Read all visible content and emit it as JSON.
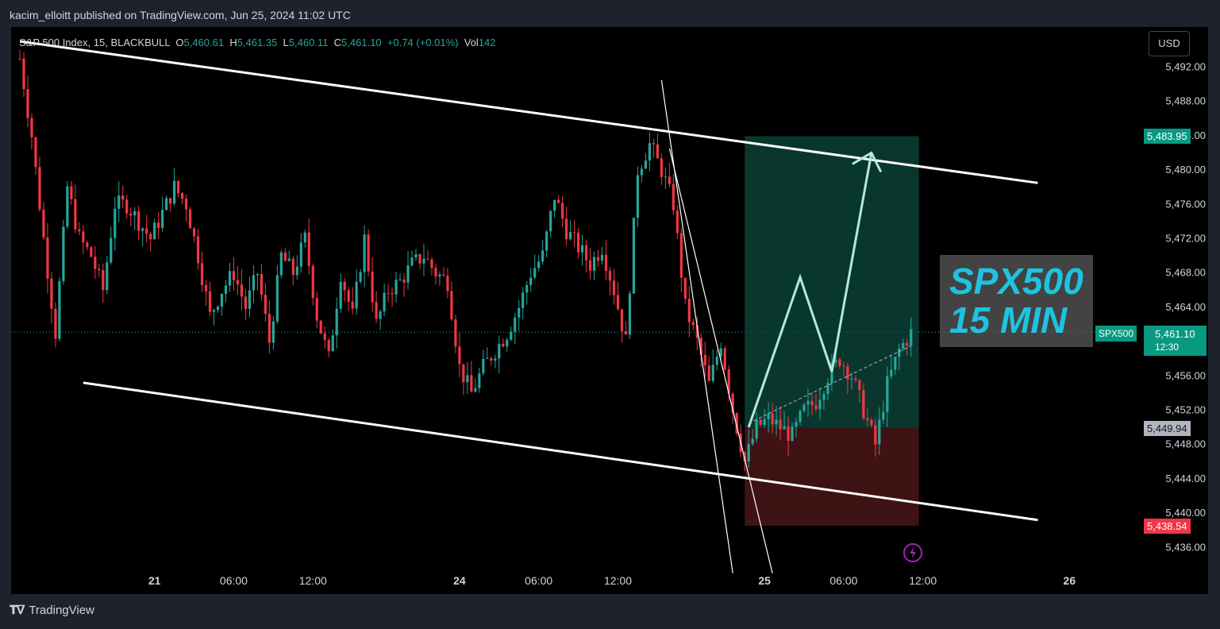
{
  "header": {
    "publisher_text": "kacim_elloitt published on TradingView.com, Jun 25, 2024 11:02 UTC"
  },
  "legend": {
    "symbol": "S&P 500 Index",
    "interval": "15",
    "broker": "BLACKBULL",
    "o_label": "O",
    "o_value": "5,460.61",
    "h_label": "H",
    "h_value": "5,461.35",
    "l_label": "L",
    "l_value": "5,460.11",
    "c_label": "C",
    "c_value": "5,461.10",
    "change": "+0.74 (+0.01%)",
    "vol_label": "Vol",
    "vol_value": "142"
  },
  "currency_button": "USD",
  "annotation": {
    "line1": "SPX500",
    "line2": "15 MIN"
  },
  "symbol_tag": "SPX500",
  "current_price": {
    "value": "5,461.10",
    "countdown": "12:30"
  },
  "target_tag": "5,483.95",
  "entry_tag": "5,449.94",
  "stop_tag": "5,438.54",
  "footer": {
    "logo_text": "TradingView"
  },
  "colors": {
    "up": "#26a69a",
    "down": "#f23645",
    "profit_zone": "#0e4a3c",
    "loss_zone": "#4a1518",
    "label_text": "#1ec3e0"
  },
  "chart_data": {
    "type": "candlestick",
    "title": "S&P 500 Index, 15, BLACKBULL",
    "y_ticks": [
      "5,492.00",
      "5,488.00",
      "5,484.00",
      "5,480.00",
      "5,476.00",
      "5,472.00",
      "5,468.00",
      "5,464.00",
      "5,460.00",
      "5,456.00",
      "5,452.00",
      "5,448.00",
      "5,444.00",
      "5,440.00",
      "5,436.00"
    ],
    "x_ticks": [
      "21",
      "06:00",
      "12:00",
      "24",
      "06:00",
      "12:00",
      "25",
      "06:00",
      "12:00",
      "26"
    ],
    "ylim": [
      5434,
      5496
    ],
    "grid": false,
    "price_path": [
      [
        0,
        5493
      ],
      [
        3,
        5484
      ],
      [
        6,
        5472
      ],
      [
        9,
        5461
      ],
      [
        12,
        5478
      ],
      [
        15,
        5472
      ],
      [
        18,
        5470
      ],
      [
        21,
        5466
      ],
      [
        24,
        5476
      ],
      [
        27,
        5476
      ],
      [
        30,
        5474
      ],
      [
        33,
        5472
      ],
      [
        36,
        5475
      ],
      [
        39,
        5478
      ],
      [
        42,
        5476
      ],
      [
        45,
        5470
      ],
      [
        48,
        5463
      ],
      [
        51,
        5466
      ],
      [
        54,
        5468
      ],
      [
        57,
        5464
      ],
      [
        60,
        5468
      ],
      [
        63,
        5460
      ],
      [
        66,
        5470
      ],
      [
        69,
        5468
      ],
      [
        72,
        5472
      ],
      [
        75,
        5463
      ],
      [
        78,
        5458
      ],
      [
        81,
        5468
      ],
      [
        84,
        5463
      ],
      [
        87,
        5472
      ],
      [
        90,
        5462
      ],
      [
        93,
        5466
      ],
      [
        96,
        5467
      ],
      [
        99,
        5469
      ],
      [
        102,
        5470
      ],
      [
        105,
        5468
      ],
      [
        108,
        5467
      ],
      [
        111,
        5457
      ],
      [
        114,
        5454
      ],
      [
        117,
        5457
      ],
      [
        120,
        5459
      ],
      [
        123,
        5461
      ],
      [
        126,
        5464
      ],
      [
        129,
        5468
      ],
      [
        132,
        5470
      ],
      [
        135,
        5477
      ],
      [
        138,
        5473
      ],
      [
        141,
        5471
      ],
      [
        144,
        5469
      ],
      [
        147,
        5471
      ],
      [
        150,
        5466
      ],
      [
        153,
        5460
      ],
      [
        156,
        5480
      ],
      [
        159,
        5483
      ],
      [
        162,
        5480
      ],
      [
        165,
        5476
      ],
      [
        168,
        5464
      ],
      [
        171,
        5460
      ],
      [
        174,
        5455
      ],
      [
        177,
        5460
      ],
      [
        180,
        5452
      ],
      [
        183,
        5446
      ],
      [
        186,
        5450
      ],
      [
        189,
        5451
      ],
      [
        192,
        5450
      ],
      [
        195,
        5449
      ],
      [
        198,
        5452
      ],
      [
        201,
        5453
      ],
      [
        204,
        5456
      ],
      [
        207,
        5458
      ],
      [
        210,
        5456
      ],
      [
        213,
        5452
      ],
      [
        216,
        5448
      ],
      [
        219,
        5455
      ],
      [
        222,
        5459
      ],
      [
        225,
        5461
      ]
    ],
    "channel": {
      "upper": {
        "x1": 0,
        "y1": 5495,
        "x2": 257,
        "y2": 5478.5
      },
      "lower": {
        "x1": 16,
        "y1": 5455.2,
        "x2": 257,
        "y2": 5439.2
      }
    },
    "wedge_lines": [
      {
        "x1": 162,
        "y1": 5490.5,
        "x2": 180,
        "y2": 5433
      },
      {
        "x1": 164,
        "y1": 5482.5,
        "x2": 190,
        "y2": 5433
      }
    ],
    "position": {
      "x_start": 183,
      "x_end": 227,
      "target": 5483.95,
      "entry": 5449.94,
      "stop": 5438.54
    },
    "projection": [
      [
        184,
        5450
      ],
      [
        197,
        5467.5
      ],
      [
        205,
        5456.5
      ],
      [
        215,
        5482
      ]
    ],
    "axis_labels": [
      {
        "label": "21",
        "idx": 34
      },
      {
        "label": "06:00",
        "idx": 54
      },
      {
        "label": "12:00",
        "idx": 74
      },
      {
        "label": "24",
        "idx": 111
      },
      {
        "label": "06:00",
        "idx": 131
      },
      {
        "label": "12:00",
        "idx": 151
      },
      {
        "label": "25",
        "idx": 188
      },
      {
        "label": "06:00",
        "idx": 208
      },
      {
        "label": "12:00",
        "idx": 228
      },
      {
        "label": "26",
        "idx": 265
      }
    ]
  }
}
